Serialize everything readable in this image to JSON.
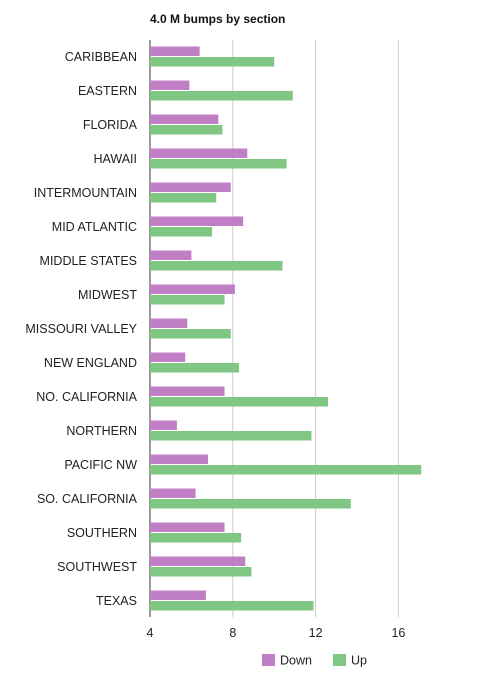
{
  "chart_data": {
    "type": "bar",
    "orientation": "horizontal",
    "title": "4.0 M bumps by section",
    "xlabel": "",
    "ylabel": "",
    "xlim": [
      4,
      20
    ],
    "xticks": [
      4,
      8,
      12,
      16
    ],
    "grid": true,
    "legend_position": "bottom",
    "categories": [
      "CARIBBEAN",
      "EASTERN",
      "FLORIDA",
      "HAWAII",
      "INTERMOUNTAIN",
      "MID ATLANTIC",
      "MIDDLE STATES",
      "MIDWEST",
      "MISSOURI VALLEY",
      "NEW ENGLAND",
      "NO. CALIFORNIA",
      "NORTHERN",
      "PACIFIC NW",
      "SO. CALIFORNIA",
      "SOUTHERN",
      "SOUTHWEST",
      "TEXAS"
    ],
    "series": [
      {
        "name": "Down",
        "color": "#c07fc4",
        "values": [
          6.4,
          5.9,
          7.3,
          8.7,
          7.9,
          8.5,
          6.0,
          8.1,
          5.8,
          5.7,
          7.6,
          5.3,
          6.8,
          6.2,
          7.6,
          8.6,
          6.7
        ]
      },
      {
        "name": "Up",
        "color": "#80c783",
        "values": [
          10.0,
          10.9,
          7.5,
          10.6,
          7.2,
          7.0,
          10.4,
          7.6,
          7.9,
          8.3,
          12.6,
          11.8,
          17.1,
          13.7,
          8.4,
          8.9,
          11.9
        ]
      }
    ]
  }
}
